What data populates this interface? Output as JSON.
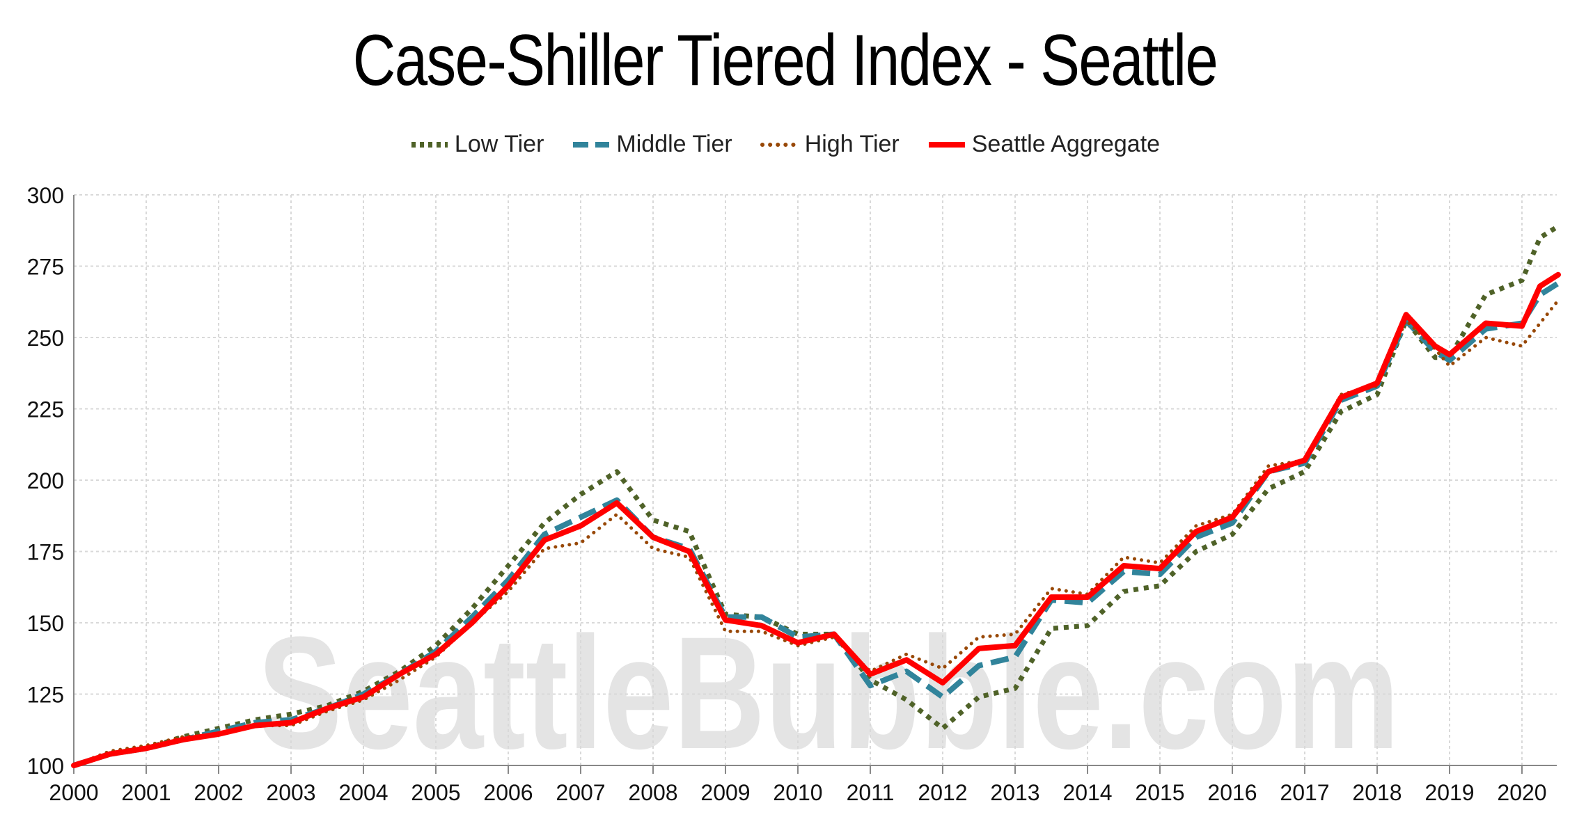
{
  "chart_data": {
    "type": "line",
    "title": "Case-Shiller Tiered Index - Seattle",
    "watermark": "SeattleBubble.com",
    "ylim": [
      100,
      300
    ],
    "yticks": [
      100,
      125,
      150,
      175,
      200,
      225,
      250,
      275,
      300
    ],
    "xlim": [
      2000,
      2020.5
    ],
    "xticks": [
      "2000",
      "2001",
      "2002",
      "2003",
      "2004",
      "2005",
      "2006",
      "2007",
      "2008",
      "2009",
      "2010",
      "2011",
      "2012",
      "2013",
      "2014",
      "2015",
      "2016",
      "2017",
      "2018",
      "2019",
      "2020"
    ],
    "grid": true,
    "legend_position": "top",
    "series": [
      {
        "name": "Low Tier",
        "color": "#4f6228",
        "style": "dotted",
        "points": [
          [
            2000,
            100
          ],
          [
            2000.5,
            104
          ],
          [
            2001,
            106
          ],
          [
            2001.5,
            110
          ],
          [
            2002,
            113
          ],
          [
            2002.5,
            116
          ],
          [
            2003,
            118
          ],
          [
            2003.5,
            121
          ],
          [
            2004,
            126
          ],
          [
            2004.5,
            133
          ],
          [
            2005,
            142
          ],
          [
            2005.5,
            155
          ],
          [
            2006,
            170
          ],
          [
            2006.5,
            185
          ],
          [
            2007,
            195
          ],
          [
            2007.5,
            203
          ],
          [
            2008,
            186
          ],
          [
            2008.5,
            182
          ],
          [
            2009,
            153
          ],
          [
            2009.5,
            152
          ],
          [
            2010,
            146
          ],
          [
            2010.5,
            146
          ],
          [
            2011,
            130
          ],
          [
            2011.5,
            123
          ],
          [
            2012,
            113
          ],
          [
            2012.5,
            124
          ],
          [
            2013,
            127
          ],
          [
            2013.5,
            148
          ],
          [
            2014,
            149
          ],
          [
            2014.5,
            161
          ],
          [
            2015,
            163
          ],
          [
            2015.5,
            175
          ],
          [
            2016,
            181
          ],
          [
            2016.5,
            197
          ],
          [
            2017,
            203
          ],
          [
            2017.5,
            224
          ],
          [
            2018,
            230
          ],
          [
            2018.4,
            256
          ],
          [
            2018.8,
            243
          ],
          [
            2019,
            243
          ],
          [
            2019.5,
            265
          ],
          [
            2020,
            270
          ],
          [
            2020.25,
            285
          ],
          [
            2020.5,
            289
          ]
        ]
      },
      {
        "name": "Middle Tier",
        "color": "#31849b",
        "style": "dashed",
        "points": [
          [
            2000,
            100
          ],
          [
            2000.5,
            104
          ],
          [
            2001,
            106
          ],
          [
            2001.5,
            109
          ],
          [
            2002,
            112
          ],
          [
            2002.5,
            115
          ],
          [
            2003,
            116
          ],
          [
            2003.5,
            120
          ],
          [
            2004,
            125
          ],
          [
            2004.5,
            132
          ],
          [
            2005,
            140
          ],
          [
            2005.5,
            152
          ],
          [
            2006,
            165
          ],
          [
            2006.5,
            181
          ],
          [
            2007,
            187
          ],
          [
            2007.5,
            193
          ],
          [
            2008,
            180
          ],
          [
            2008.5,
            176
          ],
          [
            2009,
            152
          ],
          [
            2009.5,
            152
          ],
          [
            2010,
            145
          ],
          [
            2010.5,
            146
          ],
          [
            2011,
            128
          ],
          [
            2011.5,
            133
          ],
          [
            2012,
            124
          ],
          [
            2012.5,
            135
          ],
          [
            2013,
            138
          ],
          [
            2013.5,
            158
          ],
          [
            2014,
            157
          ],
          [
            2014.5,
            168
          ],
          [
            2015,
            167
          ],
          [
            2015.5,
            180
          ],
          [
            2016,
            185
          ],
          [
            2016.5,
            203
          ],
          [
            2017,
            206
          ],
          [
            2017.5,
            228
          ],
          [
            2018,
            233
          ],
          [
            2018.4,
            256
          ],
          [
            2018.8,
            245
          ],
          [
            2019,
            242
          ],
          [
            2019.5,
            253
          ],
          [
            2020,
            255
          ],
          [
            2020.25,
            265
          ],
          [
            2020.5,
            269
          ]
        ]
      },
      {
        "name": "High Tier",
        "color": "#984807",
        "style": "dotted",
        "points": [
          [
            2000,
            100
          ],
          [
            2000.5,
            105
          ],
          [
            2001,
            107
          ],
          [
            2001.5,
            110
          ],
          [
            2002,
            111
          ],
          [
            2002.5,
            114
          ],
          [
            2003,
            114
          ],
          [
            2003.5,
            119
          ],
          [
            2004,
            123
          ],
          [
            2004.5,
            130
          ],
          [
            2005,
            138
          ],
          [
            2005.5,
            150
          ],
          [
            2006,
            161
          ],
          [
            2006.5,
            176
          ],
          [
            2007,
            178
          ],
          [
            2007.5,
            188
          ],
          [
            2008,
            176
          ],
          [
            2008.5,
            173
          ],
          [
            2009,
            147
          ],
          [
            2009.5,
            147
          ],
          [
            2010,
            142
          ],
          [
            2010.5,
            145
          ],
          [
            2011,
            133
          ],
          [
            2011.5,
            139
          ],
          [
            2012,
            134
          ],
          [
            2012.5,
            145
          ],
          [
            2013,
            146
          ],
          [
            2013.5,
            162
          ],
          [
            2014,
            160
          ],
          [
            2014.5,
            173
          ],
          [
            2015,
            171
          ],
          [
            2015.5,
            184
          ],
          [
            2016,
            188
          ],
          [
            2016.5,
            205
          ],
          [
            2017,
            207
          ],
          [
            2017.5,
            230
          ],
          [
            2018,
            233
          ],
          [
            2018.4,
            256
          ],
          [
            2018.8,
            246
          ],
          [
            2019,
            240
          ],
          [
            2019.5,
            250
          ],
          [
            2020,
            247
          ],
          [
            2020.25,
            255
          ],
          [
            2020.5,
            263
          ]
        ]
      },
      {
        "name": "Seattle Aggregate",
        "color": "#ff0000",
        "style": "solid",
        "points": [
          [
            2000,
            100
          ],
          [
            2000.5,
            104
          ],
          [
            2001,
            106
          ],
          [
            2001.5,
            109
          ],
          [
            2002,
            111
          ],
          [
            2002.5,
            114
          ],
          [
            2003,
            115
          ],
          [
            2003.5,
            120
          ],
          [
            2004,
            124
          ],
          [
            2004.5,
            132
          ],
          [
            2005,
            139
          ],
          [
            2005.5,
            150
          ],
          [
            2006,
            163
          ],
          [
            2006.5,
            179
          ],
          [
            2007,
            184
          ],
          [
            2007.5,
            192
          ],
          [
            2008,
            180
          ],
          [
            2008.5,
            175
          ],
          [
            2009,
            151
          ],
          [
            2009.5,
            149
          ],
          [
            2010,
            143
          ],
          [
            2010.5,
            146
          ],
          [
            2011,
            132
          ],
          [
            2011.5,
            137
          ],
          [
            2012,
            129
          ],
          [
            2012.5,
            141
          ],
          [
            2013,
            142
          ],
          [
            2013.5,
            159
          ],
          [
            2014,
            159
          ],
          [
            2014.5,
            170
          ],
          [
            2015,
            169
          ],
          [
            2015.5,
            182
          ],
          [
            2016,
            187
          ],
          [
            2016.5,
            203
          ],
          [
            2017,
            207
          ],
          [
            2017.5,
            229
          ],
          [
            2018,
            234
          ],
          [
            2018.4,
            258
          ],
          [
            2018.8,
            247
          ],
          [
            2019,
            244
          ],
          [
            2019.5,
            255
          ],
          [
            2020,
            254
          ],
          [
            2020.25,
            268
          ],
          [
            2020.5,
            272
          ]
        ]
      }
    ]
  }
}
